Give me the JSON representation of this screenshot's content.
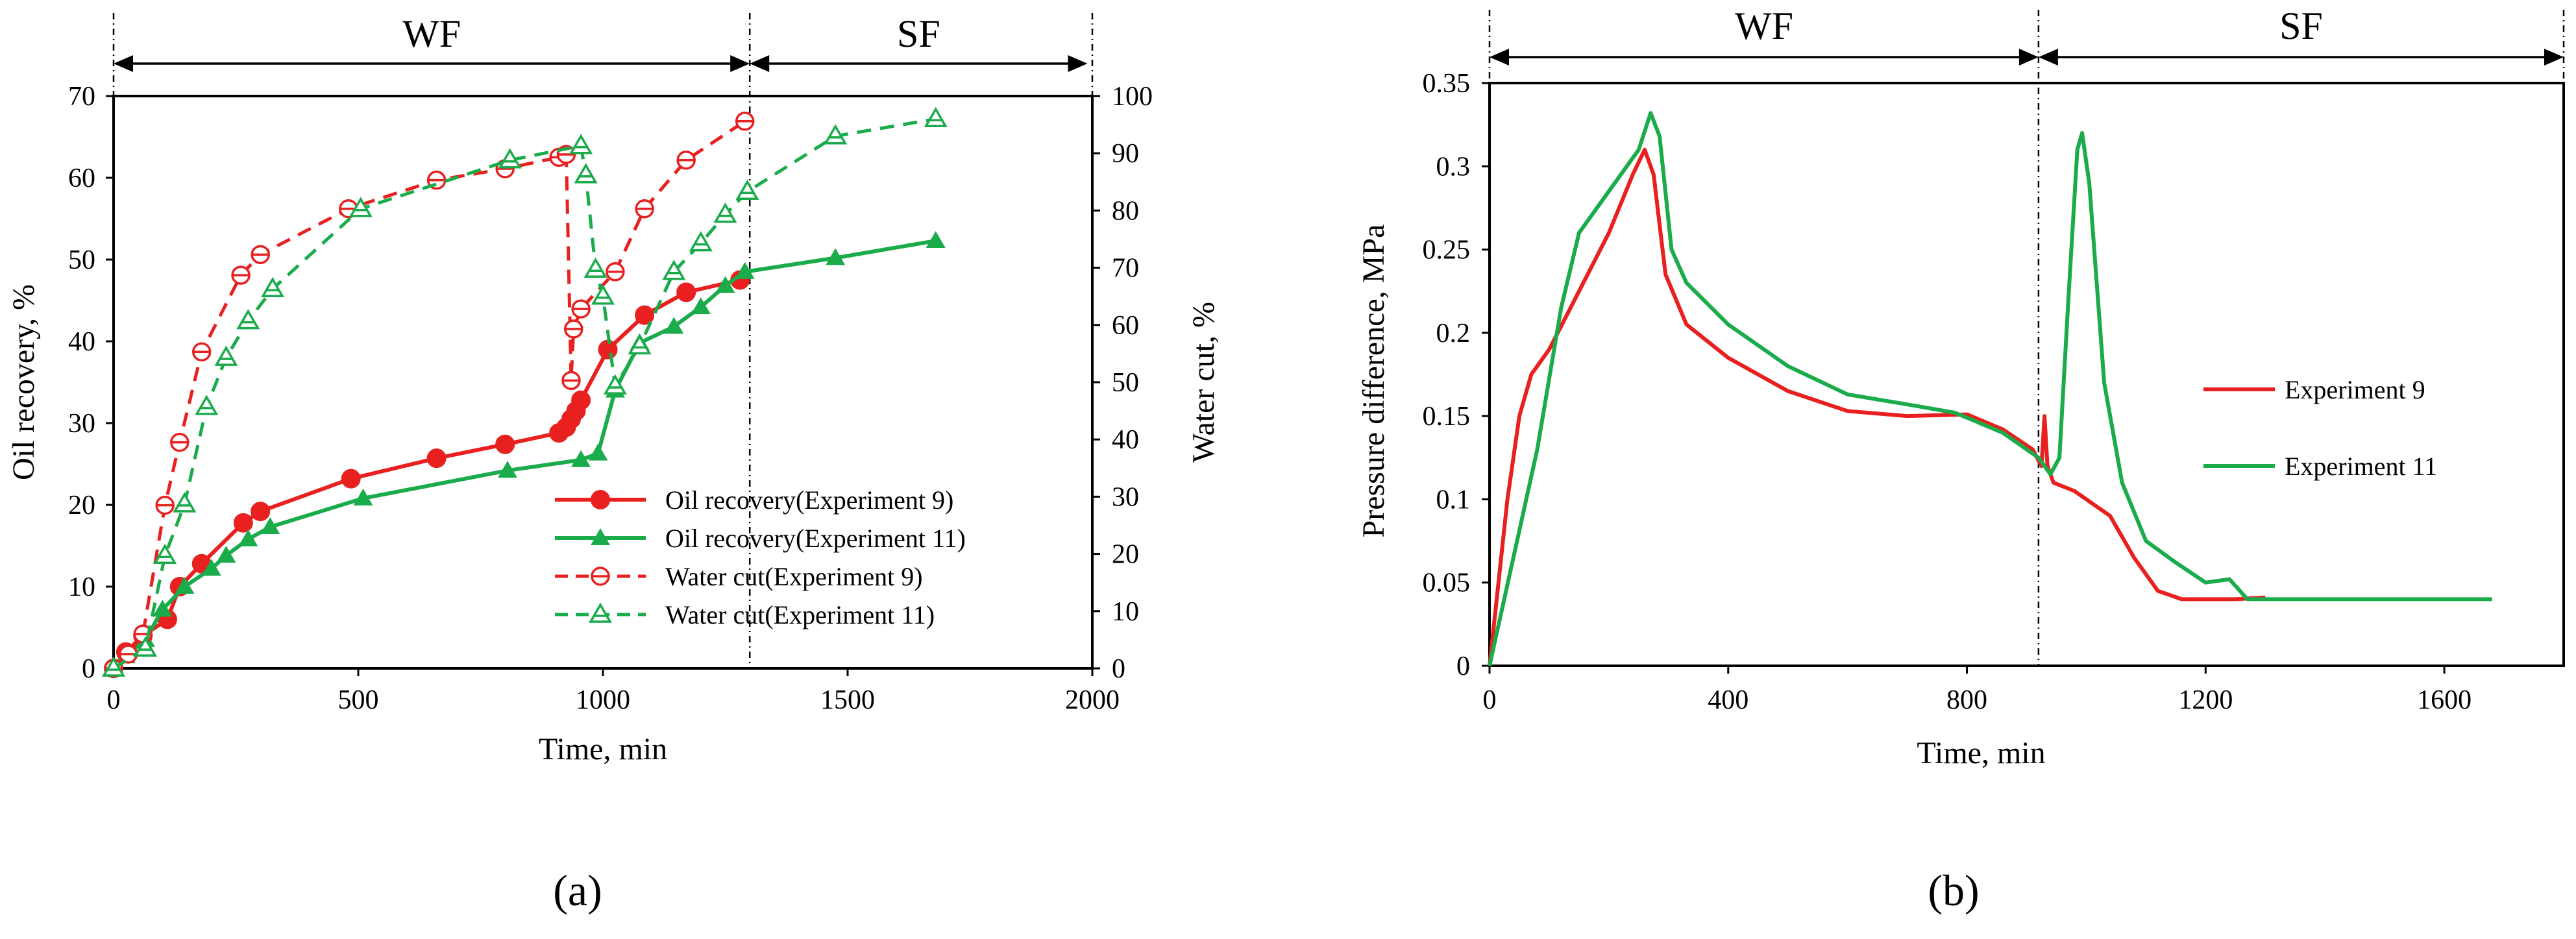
{
  "chart_data": [
    {
      "panel_label": "(a)",
      "type": "line",
      "xlabel": "Time, min",
      "ylabel": "Oil recovery, %",
      "y2label": "Water cut, %",
      "xlim": [
        0,
        2000
      ],
      "ylim": [
        0,
        70
      ],
      "y2lim": [
        0,
        100
      ],
      "xticks": [
        0,
        500,
        1000,
        1500,
        2000
      ],
      "yticks": [
        0,
        10,
        20,
        30,
        40,
        50,
        60,
        70
      ],
      "y2ticks": [
        0,
        10,
        20,
        30,
        40,
        50,
        60,
        70,
        80,
        90,
        100
      ],
      "grid": false,
      "legend_position": "bottom-right",
      "phases": [
        {
          "label": "WF",
          "from": 0,
          "to": 1300
        },
        {
          "label": "SF",
          "from": 1300,
          "to": 1990
        }
      ],
      "phase_boundary_x": 1300,
      "series": [
        {
          "name": "Oil recovery(Experiment 9)",
          "axis": "left",
          "color": "#e8201f",
          "line": "solid",
          "marker": "filled-circle",
          "points": [
            [
              0,
              0
            ],
            [
              25,
              2
            ],
            [
              60,
              4
            ],
            [
              110,
              6
            ],
            [
              135,
              10
            ],
            [
              180,
              12.8
            ],
            [
              265,
              17.8
            ],
            [
              300,
              19.2
            ],
            [
              485,
              23.2
            ],
            [
              660,
              25.7
            ],
            [
              800,
              27.4
            ],
            [
              910,
              28.8
            ],
            [
              925,
              29.5
            ],
            [
              935,
              30.5
            ],
            [
              945,
              31.5
            ],
            [
              955,
              32.8
            ],
            [
              1010,
              39
            ],
            [
              1085,
              43.2
            ],
            [
              1170,
              46
            ],
            [
              1280,
              47.5
            ]
          ]
        },
        {
          "name": "Oil recovery(Experiment 11)",
          "axis": "left",
          "color": "#1aab4b",
          "line": "solid",
          "marker": "filled-triangle",
          "points": [
            [
              0,
              0
            ],
            [
              25,
              1.5
            ],
            [
              65,
              3.5
            ],
            [
              100,
              7.2
            ],
            [
              145,
              10
            ],
            [
              200,
              12.2
            ],
            [
              230,
              13.8
            ],
            [
              275,
              15.8
            ],
            [
              320,
              17.3
            ],
            [
              510,
              20.8
            ],
            [
              805,
              24.2
            ],
            [
              955,
              25.5
            ],
            [
              990,
              26.3
            ],
            [
              1025,
              34
            ],
            [
              1075,
              39.8
            ],
            [
              1145,
              41.8
            ],
            [
              1200,
              44.2
            ],
            [
              1250,
              46.8
            ],
            [
              1290,
              48.5
            ],
            [
              1475,
              50.2
            ],
            [
              1680,
              52.3
            ]
          ]
        },
        {
          "name": "Water cut(Experiment 9)",
          "axis": "right",
          "color": "#e8201f",
          "line": "dashed",
          "marker": "open-circle-bar",
          "points": [
            [
              0,
              0
            ],
            [
              30,
              2.5
            ],
            [
              60,
              6
            ],
            [
              105,
              28.5
            ],
            [
              135,
              39.5
            ],
            [
              180,
              55.3
            ],
            [
              260,
              68.7
            ],
            [
              300,
              72.3
            ],
            [
              480,
              80.3
            ],
            [
              660,
              85.3
            ],
            [
              800,
              87.3
            ],
            [
              910,
              89.3
            ],
            [
              925,
              89.8
            ],
            [
              935,
              50.3
            ],
            [
              940,
              59.3
            ],
            [
              955,
              62.8
            ],
            [
              1025,
              69.3
            ],
            [
              1085,
              80.3
            ],
            [
              1170,
              88.8
            ],
            [
              1290,
              95.6
            ]
          ]
        },
        {
          "name": "Water cut(Experiment 11)",
          "axis": "right",
          "color": "#1aab4b",
          "line": "dashed",
          "marker": "open-triangle-bar",
          "points": [
            [
              0,
              0
            ],
            [
              65,
              3.5
            ],
            [
              105,
              19.7
            ],
            [
              145,
              28.7
            ],
            [
              190,
              45.7
            ],
            [
              230,
              54.3
            ],
            [
              275,
              60.7
            ],
            [
              325,
              66.3
            ],
            [
              505,
              80.3
            ],
            [
              810,
              88.8
            ],
            [
              955,
              91.3
            ],
            [
              965,
              86.2
            ],
            [
              985,
              69.7
            ],
            [
              1000,
              65
            ],
            [
              1025,
              49.3
            ],
            [
              1075,
              56.3
            ],
            [
              1145,
              69.3
            ],
            [
              1200,
              74.3
            ],
            [
              1250,
              79.3
            ],
            [
              1295,
              83.3
            ],
            [
              1475,
              93
            ],
            [
              1680,
              96
            ]
          ]
        }
      ]
    },
    {
      "panel_label": "(b)",
      "type": "line",
      "xlabel": "Time, min",
      "ylabel": "Pressure difference, MPa",
      "xlim": [
        0,
        1800
      ],
      "ylim": [
        0,
        0.35
      ],
      "xticks": [
        0,
        400,
        800,
        1200,
        1600
      ],
      "yticks": [
        0,
        0.05,
        0.1,
        0.15,
        0.2,
        0.25,
        0.3,
        0.35
      ],
      "ytick_labels": [
        "0",
        "0.05",
        "0.1",
        "0.15",
        "0.2",
        "0.25",
        "0.3",
        "0.35"
      ],
      "grid": false,
      "legend_position": "right",
      "phases": [
        {
          "label": "WF",
          "from": 0,
          "to": 920
        },
        {
          "label": "SF",
          "from": 920,
          "to": 1800
        }
      ],
      "phase_boundary_x": 920,
      "series": [
        {
          "name": "Experiment 9",
          "color": "#e8201f",
          "line": "solid",
          "points": [
            [
              0,
              0
            ],
            [
              15,
              0.05
            ],
            [
              30,
              0.1
            ],
            [
              50,
              0.15
            ],
            [
              70,
              0.175
            ],
            [
              100,
              0.19
            ],
            [
              150,
              0.225
            ],
            [
              200,
              0.26
            ],
            [
              240,
              0.295
            ],
            [
              260,
              0.31
            ],
            [
              275,
              0.295
            ],
            [
              295,
              0.235
            ],
            [
              330,
              0.205
            ],
            [
              400,
              0.185
            ],
            [
              500,
              0.165
            ],
            [
              600,
              0.153
            ],
            [
              700,
              0.15
            ],
            [
              800,
              0.151
            ],
            [
              860,
              0.142
            ],
            [
              910,
              0.13
            ],
            [
              925,
              0.12
            ],
            [
              930,
              0.15
            ],
            [
              935,
              0.12
            ],
            [
              945,
              0.11
            ],
            [
              980,
              0.105
            ],
            [
              1040,
              0.09
            ],
            [
              1080,
              0.065
            ],
            [
              1120,
              0.045
            ],
            [
              1160,
              0.04
            ],
            [
              1250,
              0.04
            ],
            [
              1300,
              0.041
            ]
          ]
        },
        {
          "name": "Experiment 11",
          "color": "#1aab4b",
          "line": "solid",
          "points": [
            [
              0,
              0
            ],
            [
              40,
              0.065
            ],
            [
              80,
              0.13
            ],
            [
              120,
              0.215
            ],
            [
              150,
              0.26
            ],
            [
              200,
              0.285
            ],
            [
              250,
              0.31
            ],
            [
              270,
              0.332
            ],
            [
              285,
              0.318
            ],
            [
              305,
              0.25
            ],
            [
              330,
              0.23
            ],
            [
              400,
              0.205
            ],
            [
              500,
              0.18
            ],
            [
              600,
              0.163
            ],
            [
              700,
              0.157
            ],
            [
              780,
              0.152
            ],
            [
              860,
              0.14
            ],
            [
              920,
              0.125
            ],
            [
              940,
              0.115
            ],
            [
              955,
              0.125
            ],
            [
              970,
              0.22
            ],
            [
              985,
              0.31
            ],
            [
              993,
              0.32
            ],
            [
              1005,
              0.29
            ],
            [
              1030,
              0.17
            ],
            [
              1060,
              0.11
            ],
            [
              1100,
              0.075
            ],
            [
              1150,
              0.062
            ],
            [
              1200,
              0.05
            ],
            [
              1240,
              0.052
            ],
            [
              1270,
              0.04
            ],
            [
              1400,
              0.04
            ],
            [
              1680,
              0.04
            ]
          ]
        }
      ]
    }
  ]
}
